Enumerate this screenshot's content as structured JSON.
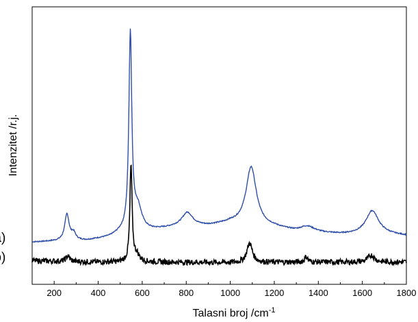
{
  "chart_data": {
    "type": "line",
    "title": "",
    "xlabel": "Talasni broj /cm",
    "xlabel_superscript": "-1",
    "ylabel": "Intenzitet /r.j.",
    "xlim": [
      100,
      1800
    ],
    "ylim": [
      0,
      1
    ],
    "x_ticks": [
      200,
      400,
      600,
      800,
      1000,
      1200,
      1400,
      1600,
      1800
    ],
    "y_ticks_shown": false,
    "grid": false,
    "legend": "none",
    "series": [
      {
        "name": "(a)",
        "color": "#2e4ea8",
        "baseline": [
          [
            100,
            0.152
          ],
          [
            200,
            0.155
          ],
          [
            350,
            0.158
          ],
          [
            450,
            0.17
          ],
          [
            500,
            0.185
          ],
          [
            650,
            0.195
          ],
          [
            750,
            0.205
          ],
          [
            900,
            0.21
          ],
          [
            1000,
            0.22
          ],
          [
            1200,
            0.205
          ],
          [
            1300,
            0.19
          ],
          [
            1500,
            0.18
          ],
          [
            1700,
            0.18
          ],
          [
            1800,
            0.175
          ]
        ],
        "peaks": [
          {
            "x": 258,
            "height": 0.095,
            "width": 12
          },
          {
            "x": 288,
            "height": 0.025,
            "width": 12
          },
          {
            "x": 546,
            "height": 0.71,
            "width": 8
          },
          {
            "x": 580,
            "height": 0.08,
            "width": 22
          },
          {
            "x": 805,
            "height": 0.05,
            "width": 30
          },
          {
            "x": 1095,
            "height": 0.21,
            "width": 28
          },
          {
            "x": 1350,
            "height": 0.02,
            "width": 40
          },
          {
            "x": 1645,
            "height": 0.085,
            "width": 35
          }
        ],
        "noise": 0.002
      },
      {
        "name": "(b)",
        "color": "#000000",
        "baseline": [
          [
            100,
            0.085
          ],
          [
            400,
            0.08
          ],
          [
            700,
            0.08
          ],
          [
            1000,
            0.078
          ],
          [
            1300,
            0.08
          ],
          [
            1600,
            0.08
          ],
          [
            1800,
            0.08
          ]
        ],
        "peaks": [
          {
            "x": 262,
            "height": 0.02,
            "width": 10
          },
          {
            "x": 549,
            "height": 0.35,
            "width": 6
          },
          {
            "x": 575,
            "height": 0.025,
            "width": 15
          },
          {
            "x": 1088,
            "height": 0.07,
            "width": 15
          },
          {
            "x": 1345,
            "height": 0.02,
            "width": 8
          },
          {
            "x": 1640,
            "height": 0.025,
            "width": 18
          }
        ],
        "noise": 0.01
      }
    ],
    "annotations": [
      {
        "text": "(a)",
        "x": 125,
        "y": 0.17
      },
      {
        "text": "(b)",
        "x": 125,
        "y": 0.1
      }
    ]
  }
}
